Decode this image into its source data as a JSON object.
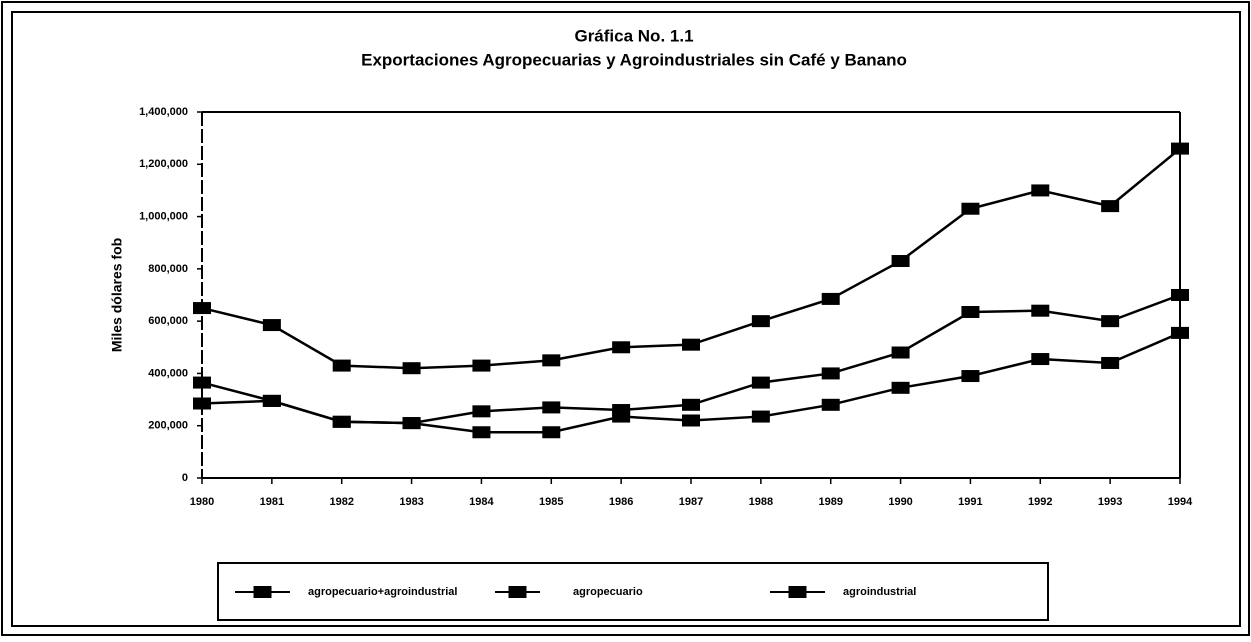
{
  "chart_data": {
    "type": "line",
    "title": "Gráfica No. 1.1",
    "subtitle": "Exportaciones Agropecuarias y Agroindustriales sin Café y Banano",
    "y_label": "Miles dólares fob",
    "categories": [
      "1980",
      "1981",
      "1982",
      "1983",
      "1984",
      "1985",
      "1986",
      "1987",
      "1988",
      "1989",
      "1990",
      "1991",
      "1992",
      "1993",
      "1994"
    ],
    "series": [
      {
        "name": "agropecuario+agroindustrial",
        "color": "#000000",
        "values": [
          650000,
          585000,
          430000,
          420000,
          430000,
          450000,
          500000,
          510000,
          600000,
          685000,
          830000,
          1030000,
          1100000,
          1040000,
          1260000
        ]
      },
      {
        "name": "agropecuario",
        "color": "#000000",
        "values": [
          285000,
          295000,
          215000,
          210000,
          255000,
          270000,
          260000,
          280000,
          365000,
          400000,
          480000,
          635000,
          640000,
          600000,
          700000
        ]
      },
      {
        "name": "agroindustrial",
        "color": "#000000",
        "values": [
          365000,
          295000,
          215000,
          210000,
          175000,
          175000,
          235000,
          220000,
          235000,
          280000,
          345000,
          390000,
          455000,
          440000,
          555000
        ]
      }
    ],
    "ylim": [
      0,
      1400000
    ],
    "yticks": [
      0,
      {
        "value": 200000,
        "label": "200,000"
      },
      {
        "value": 400000,
        "label": "400,000"
      },
      {
        "value": 600000,
        "label": "600,000"
      },
      {
        "value": 800000,
        "label": "800,000"
      },
      {
        "value": 1000000,
        "label": "1,000,000"
      },
      {
        "value": 1200000,
        "label": "1,200,000"
      },
      {
        "value": 1400000,
        "label": "1,400,000"
      }
    ],
    "legend": "bottom"
  }
}
